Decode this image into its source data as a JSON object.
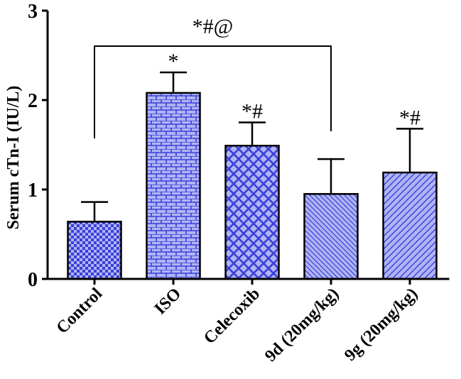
{
  "chart_data": {
    "type": "bar",
    "title": "",
    "xlabel": "",
    "ylabel": "Serum cTn-I (IU/L)",
    "ylim": [
      0,
      3
    ],
    "yticks": [
      "0",
      "1",
      "2",
      "3"
    ],
    "categories": [
      "Control",
      "ISO",
      "Celecoxib",
      "9d (20mg/kg)",
      "9g (20mg/kg)"
    ],
    "values": [
      0.64,
      2.08,
      1.49,
      0.95,
      1.19
    ],
    "errors": [
      0.22,
      0.23,
      0.26,
      0.39,
      0.49
    ],
    "annotations": [
      "",
      "*",
      "*#",
      "",
      "*#"
    ],
    "bracket": {
      "from": "Control",
      "to": "9d (20mg/kg)",
      "label": "*#@"
    },
    "bar_fill_color": "#B0B4F4",
    "pattern_color": "#3A40D8",
    "patterns": [
      "checker",
      "brick",
      "crosshatch",
      "diagonal-down",
      "diagonal-up"
    ]
  }
}
